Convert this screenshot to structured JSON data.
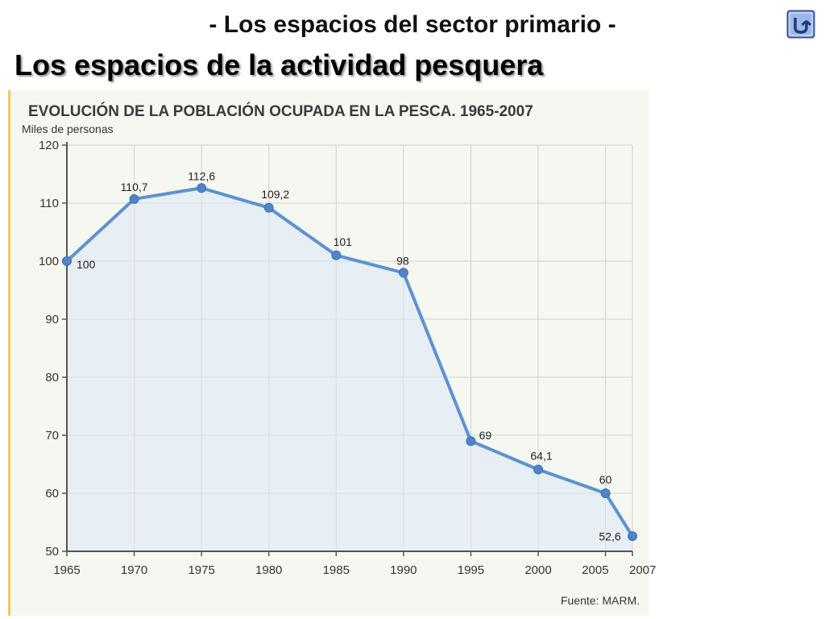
{
  "slide": {
    "subtitle": "- Los espacios del sector primario -",
    "title": "Los espacios de la actividad pesquera",
    "back_button_icon": "return-arrow-icon"
  },
  "colors": {
    "line": "#5b93d0",
    "marker": "#4f85c6",
    "area": "#dde9f6",
    "grid": "#cfcfcf",
    "panel": "#f7f7f1",
    "panel_border": "#f0c860",
    "button_fill": "#9db8e6",
    "button_border": "#3a56a0"
  },
  "chart_data": {
    "type": "line",
    "title": "EVOLUCIÓN DE LA POBLACIÓN OCUPADA EN LA PESCA. 1965-2007",
    "ylabel": "Miles de personas",
    "xlabel": "",
    "x": [
      1965,
      1970,
      1975,
      1980,
      1985,
      1990,
      1995,
      2000,
      2005,
      2007
    ],
    "x_tick_labels": [
      "1965",
      "1970",
      "1975",
      "1980",
      "1985",
      "1990",
      "1995",
      "2000",
      "2005",
      "2007"
    ],
    "series": [
      {
        "values": [
          100,
          110.7,
          112.6,
          109.2,
          101,
          98,
          69,
          64.1,
          60,
          52.6
        ]
      }
    ],
    "data_labels": [
      "100",
      "110,7",
      "112,6",
      "109,2",
      "101",
      "98",
      "69",
      "64,1",
      "60",
      "52,6"
    ],
    "y_ticks": [
      50,
      60,
      70,
      80,
      90,
      100,
      110,
      120
    ],
    "y_tick_labels": [
      "50",
      "60",
      "70",
      "80",
      "90",
      "100",
      "110",
      "120"
    ],
    "ylim": [
      50,
      120
    ],
    "xlim": [
      1965,
      2007
    ],
    "grid": true,
    "legend": "none",
    "source": "Fuente: MARM."
  }
}
